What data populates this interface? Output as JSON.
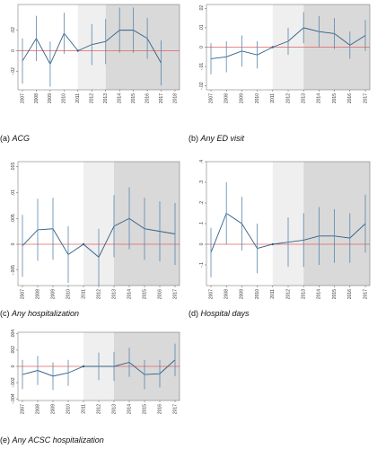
{
  "chart_data": [
    {
      "type": "line",
      "label": "(a)",
      "title": "ACG",
      "categories": [
        "2007",
        "2008",
        "2009",
        "2010",
        "2011",
        "2012",
        "2013",
        "2014",
        "2015",
        "2016",
        "2017",
        "2018"
      ],
      "series": [
        {
          "color": "#2f5f86",
          "values": [
            -0.01,
            0.012,
            -0.013,
            0.017,
            0,
            0.006,
            0.009,
            0.02,
            0.02,
            0.012,
            -0.012,
            null
          ],
          "errors": [
            0.022,
            0.022,
            0.022,
            0.02,
            null,
            0.02,
            0.022,
            0.022,
            0.022,
            0.02,
            0.022,
            null
          ]
        }
      ],
      "ylim": [
        -0.038,
        0.045
      ],
      "yticks": [
        {
          "value": -0.02,
          "label": "-.02"
        },
        0,
        {
          "value": 0.02,
          "label": ".02"
        }
      ],
      "refline": {
        "value": 0,
        "color": "#e06060"
      },
      "shading": [
        {
          "from": "2011",
          "to": "2013",
          "color": "#efefef"
        },
        {
          "from": "2013",
          "to": "2018",
          "color": "#d9d9d9"
        }
      ]
    },
    {
      "type": "line",
      "label": "(b)",
      "title": "Any ED visit",
      "categories": [
        "2007",
        "2008",
        "2009",
        "2010",
        "2011",
        "2012",
        "2013",
        "2014",
        "2015",
        "2016",
        "2017"
      ],
      "series": [
        {
          "color": "#2f5f86",
          "values": [
            -0.006,
            -0.005,
            -0.002,
            -0.004,
            0,
            0.003,
            0.01,
            0.008,
            0.007,
            0.001,
            0.006
          ],
          "errors": [
            0.008,
            0.008,
            0.008,
            0.007,
            null,
            0.007,
            0.008,
            0.008,
            0.008,
            0.007,
            0.008
          ]
        }
      ],
      "ylim": [
        -0.022,
        0.022
      ],
      "yticks": [
        {
          "value": -0.02,
          "label": "-.02"
        },
        {
          "value": -0.01,
          "label": "-.01"
        },
        0,
        {
          "value": 0.01,
          "label": ".01"
        },
        {
          "value": 0.02,
          "label": ".02"
        }
      ],
      "refline": {
        "value": 0,
        "color": "#e06060"
      },
      "shading": [
        {
          "from": "2011",
          "to": "2013",
          "color": "#efefef"
        },
        {
          "from": "2013",
          "to": "2017",
          "color": "#d9d9d9"
        }
      ]
    },
    {
      "type": "line",
      "label": "(c)",
      "title": "Any hospitalization",
      "categories": [
        "2007",
        "2008",
        "2009",
        "2010",
        "2011",
        "2012",
        "2013",
        "2014",
        "2015",
        "2016",
        "2017"
      ],
      "series": [
        {
          "color": "#2f5f86",
          "values": [
            -0.0003,
            0.0028,
            0.003,
            -0.002,
            0,
            -0.0025,
            0.0035,
            0.005,
            0.003,
            0.0025,
            0.002
          ],
          "errors": [
            0.006,
            0.006,
            0.006,
            0.0055,
            null,
            0.0055,
            0.006,
            0.006,
            0.006,
            0.0058,
            0.006
          ]
        }
      ],
      "ylim": [
        -0.008,
        0.016
      ],
      "yticks": [
        {
          "value": -0.005,
          "label": "-.005"
        },
        0,
        {
          "value": 0.005,
          "label": ".005"
        },
        {
          "value": 0.01,
          "label": ".01"
        },
        {
          "value": 0.015,
          "label": ".015"
        }
      ],
      "refline": {
        "value": 0,
        "color": "#e06060"
      },
      "shading": [
        {
          "from": "2011",
          "to": "2013",
          "color": "#efefef"
        },
        {
          "from": "2013",
          "to": "2017",
          "color": "#d9d9d9"
        }
      ]
    },
    {
      "type": "line",
      "label": "(d)",
      "title": "Hospital days",
      "categories": [
        "2007",
        "2008",
        "2009",
        "2010",
        "2011",
        "2012",
        "2013",
        "2014",
        "2015",
        "2016",
        "2017"
      ],
      "series": [
        {
          "color": "#2f5f86",
          "values": [
            -0.04,
            0.15,
            0.1,
            -0.02,
            0,
            0.01,
            0.02,
            0.04,
            0.04,
            0.03,
            0.1
          ],
          "errors": [
            0.12,
            0.15,
            0.13,
            0.12,
            null,
            0.12,
            0.13,
            0.14,
            0.13,
            0.12,
            0.14
          ]
        }
      ],
      "ylim": [
        -0.2,
        0.4
      ],
      "yticks": [
        {
          "value": -0.1,
          "label": "-.1"
        },
        0,
        {
          "value": 0.1,
          "label": ".1"
        },
        {
          "value": 0.2,
          "label": ".2"
        },
        {
          "value": 0.3,
          "label": ".3"
        },
        {
          "value": 0.4,
          "label": ".4"
        }
      ],
      "refline": {
        "value": 0,
        "color": "#e06060"
      },
      "shading": [
        {
          "from": "2011",
          "to": "2013",
          "color": "#efefef"
        },
        {
          "from": "2013",
          "to": "2017",
          "color": "#d9d9d9"
        }
      ]
    },
    {
      "type": "line",
      "label": "(e)",
      "title": "Any ACSC hospitalization",
      "categories": [
        "2007",
        "2008",
        "2009",
        "2010",
        "2011",
        "2012",
        "2013",
        "2014",
        "2015",
        "2016",
        "2017"
      ],
      "series": [
        {
          "color": "#2f5f86",
          "values": [
            -0.001,
            -0.0005,
            -0.0012,
            -0.0008,
            0,
            0,
            0,
            0.0005,
            -0.001,
            -0.0009,
            0.0008
          ],
          "errors": [
            0.0018,
            0.0018,
            0.0017,
            0.0016,
            null,
            0.0017,
            0.0018,
            0.0018,
            0.0018,
            0.0017,
            0.002
          ]
        }
      ],
      "ylim": [
        -0.0042,
        0.0042
      ],
      "yticks": [
        {
          "value": -0.004,
          "label": "-.004"
        },
        {
          "value": -0.002,
          "label": "-.002"
        },
        0,
        {
          "value": 0.002,
          "label": ".002"
        },
        {
          "value": 0.004,
          "label": ".004"
        }
      ],
      "refline": {
        "value": 0,
        "color": "#e06060"
      },
      "shading": [
        {
          "from": "2011",
          "to": "2013",
          "color": "#efefef"
        },
        {
          "from": "2013",
          "to": "2017",
          "color": "#d9d9d9"
        }
      ]
    }
  ]
}
